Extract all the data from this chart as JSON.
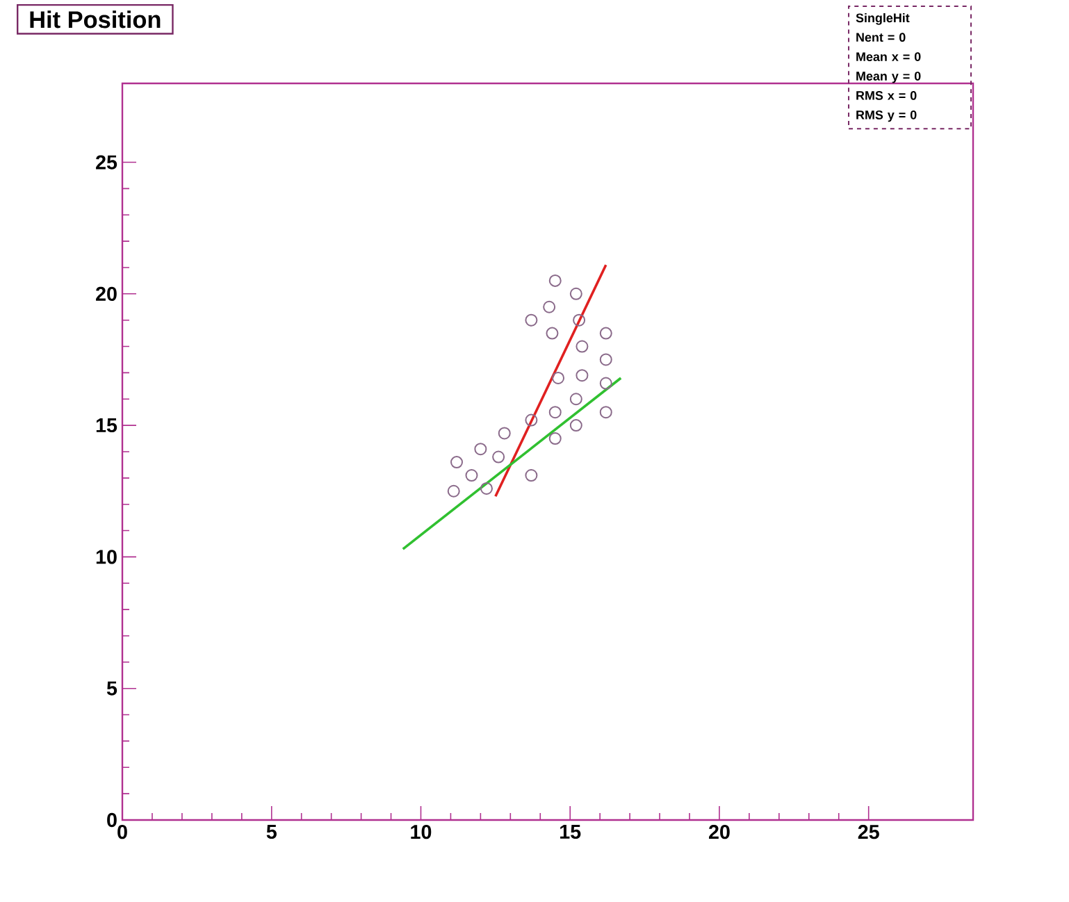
{
  "chart_data": {
    "type": "scatter",
    "title": "Hit Position",
    "xlim": [
      0,
      28.5
    ],
    "ylim": [
      0,
      28
    ],
    "xticks": [
      0,
      5,
      10,
      15,
      20,
      25
    ],
    "yticks": [
      0,
      5,
      10,
      15,
      20,
      25
    ],
    "marker": "circle",
    "grid": false,
    "annotations": [
      "SingleHit",
      "Nent = 0",
      "Mean x = 0",
      "Mean y = 0",
      "RMS x = 0",
      "RMS y = 0"
    ],
    "series": [
      {
        "color": "#8a6a8a",
        "x": [
          14.3,
          15.2,
          14.4,
          15.3,
          15.4,
          16.2,
          15.4,
          14.6,
          14.5,
          15.2,
          16.2,
          14.5,
          13.7,
          12.8,
          12.0,
          12.6,
          13.7,
          11.2,
          11.7,
          12.2,
          11.1,
          15.2,
          16.2,
          13.7,
          14.5,
          16.2
        ],
        "values": [
          19.5,
          20.0,
          18.5,
          19.0,
          18.0,
          17.5,
          16.9,
          16.8,
          15.5,
          16.0,
          16.6,
          14.5,
          15.2,
          14.7,
          14.1,
          13.8,
          13.1,
          13.6,
          13.1,
          12.6,
          12.5,
          15.0,
          15.5,
          19.0,
          20.5,
          18.5
        ]
      },
      {
        "type": "line",
        "marker": "none",
        "color": "#e02020",
        "x": [
          12.5,
          16.2
        ],
        "values": [
          12.3,
          21.1
        ]
      },
      {
        "type": "line",
        "marker": "none",
        "color": "#30c030",
        "x": [
          9.4,
          16.7
        ],
        "values": [
          10.3,
          16.8
        ]
      }
    ]
  }
}
